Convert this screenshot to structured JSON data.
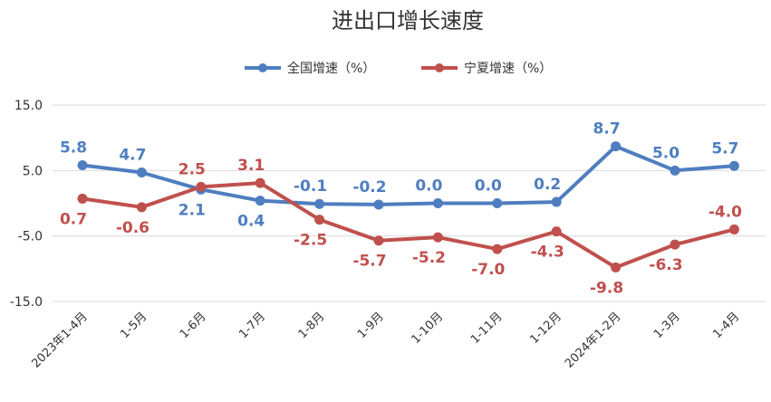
{
  "chart_data": {
    "type": "line",
    "title": "进出口增长速度",
    "xlabel": "",
    "ylabel": "",
    "categories": [
      "2023年1-4月",
      "1-5月",
      "1-6月",
      "1-7月",
      "1-8月",
      "1-9月",
      "1-10月",
      "1-11月",
      "1-12月",
      "2024年1-2月",
      "1-3月",
      "1-4月"
    ],
    "yticks": [
      "15.0",
      "5.0",
      "-5.0",
      "-15.0"
    ],
    "ylim": [
      -15,
      15
    ],
    "grid": true,
    "legend_position": "top-center",
    "series": [
      {
        "name": "全国增速（%）",
        "color": "#4e7ec0",
        "values": [
          5.8,
          4.7,
          2.1,
          0.4,
          -0.1,
          -0.2,
          0.0,
          0.0,
          0.2,
          8.7,
          5.0,
          5.7
        ],
        "labels": [
          "5.8",
          "4.7",
          "2.1",
          "0.4",
          "-0.1",
          "-0.2",
          "0.0",
          "0.0",
          "0.2",
          "8.7",
          "5.0",
          "5.7"
        ]
      },
      {
        "name": "宁夏增速（%）",
        "color": "#c0504d",
        "values": [
          0.7,
          -0.6,
          2.5,
          3.1,
          -2.5,
          -5.7,
          -5.2,
          -7.0,
          -4.3,
          -9.8,
          -6.3,
          -4.0
        ],
        "labels": [
          "0.7",
          "-0.6",
          "2.5",
          "3.1",
          "-2.5",
          "-5.7",
          "-5.2",
          "-7.0",
          "-4.3",
          "-9.8",
          "-6.3",
          "-4.0"
        ]
      }
    ]
  }
}
